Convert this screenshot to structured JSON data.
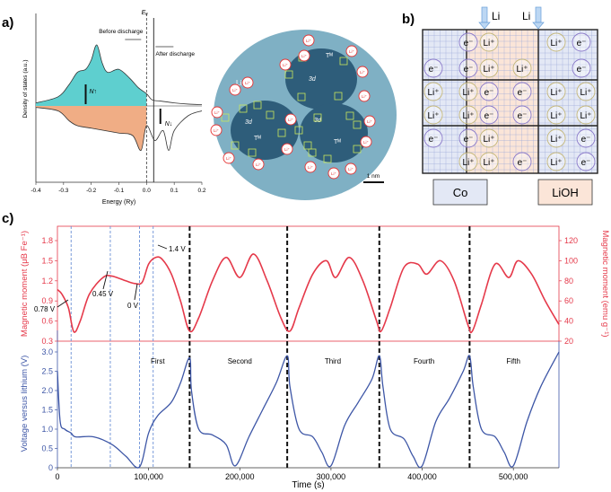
{
  "panel_labels": {
    "a": "a)",
    "b": "b)",
    "c": "c)"
  },
  "colors": {
    "teal": "#5ecfcf",
    "orange": "#f0ad85",
    "dark_teal": "#2e5d7a",
    "ellipse": "#7fb0c4",
    "red_axis": "#e5394a",
    "blue_axis": "#3d56a6",
    "dashed_blue": "#6a8fd6",
    "grid_blue": "#9aa8d8",
    "co_fill": "#e3e8f5",
    "lioh_fill": "#fbe5d8"
  },
  "panel_a": {
    "chart_data": {
      "type": "area",
      "ylabel": "Density of states (a.u.)",
      "xlabel": "Energy (Ry)",
      "xlim": [
        -0.4,
        0.2
      ],
      "xticks": [
        "-0.4",
        "-0.3",
        "-0.2",
        "-0.1",
        "0.0",
        "0.1",
        "0.2"
      ],
      "series": [
        {
          "name": "N↑",
          "x": [
            -0.4,
            -0.32,
            -0.28,
            -0.25,
            -0.22,
            -0.2,
            -0.18,
            -0.16,
            -0.14,
            -0.1,
            -0.06,
            -0.03,
            0.0,
            0.02,
            0.05,
            0.1,
            0.15,
            0.2
          ],
          "y": [
            0.05,
            0.15,
            0.35,
            0.55,
            0.6,
            0.75,
            1.0,
            0.7,
            0.55,
            0.6,
            0.45,
            0.3,
            0.2,
            0.1,
            0.08,
            0.05,
            0.03,
            0.02
          ]
        },
        {
          "name": "N↓",
          "x": [
            -0.4,
            -0.32,
            -0.28,
            -0.25,
            -0.2,
            -0.15,
            -0.1,
            -0.05,
            -0.02,
            0.0,
            0.03,
            0.06,
            0.08,
            0.1,
            0.15,
            0.2
          ],
          "y": [
            -0.03,
            -0.1,
            -0.3,
            -0.4,
            -0.45,
            -0.5,
            -0.55,
            -0.6,
            -0.9,
            -0.4,
            -0.7,
            -0.5,
            -0.9,
            -0.5,
            -0.2,
            -0.1
          ]
        }
      ],
      "ef_label": "Eₑ",
      "before_label": "Before discharge",
      "after_label": "After discharge",
      "n_up": "N↑",
      "n_down": "N↓"
    }
  },
  "panel_a2": {
    "li2o": "Li₂O",
    "t_label": "Tᴹ",
    "d_label": "3d",
    "fe_label": "Fe",
    "li_label": "Li⁺",
    "scale": "1 nm"
  },
  "panel_b": {
    "li_top_1": "Li",
    "li_top_2": "Li",
    "co_label": "Co",
    "lioh_label": "LiOH",
    "e_label": "e⁻",
    "li_label": "Li⁺"
  },
  "panel_c": {
    "chart_data": {
      "type": "line",
      "xlabel": "Time (s)",
      "xlim": [
        0,
        550000
      ],
      "xticks": [
        "0",
        "100,000",
        "200,000",
        "300,000",
        "400,000",
        "500,000"
      ],
      "top": {
        "ylabel_left": "Magnetic moment (μB Fe⁻¹)",
        "ylabel_right": "Magnetic moment (emu g⁻¹)",
        "ylim_left": [
          0.3,
          1.8
        ],
        "ylim_right": [
          20,
          120
        ],
        "yticks_left": [
          "0.3",
          "0.6",
          "0.9",
          "1.2",
          "1.5",
          "1.8"
        ],
        "yticks_right": [
          "20",
          "40",
          "60",
          "80",
          "100",
          "120"
        ],
        "annotations": [
          "0.78 V",
          "0.45 V",
          "0 V",
          "1.4 V"
        ],
        "x": [
          0,
          5000,
          12000,
          18000,
          25000,
          35000,
          50000,
          60000,
          75000,
          85000,
          93000,
          100000,
          108000,
          115000,
          125000,
          135000,
          145000,
          155000,
          170000,
          185000,
          200000,
          215000,
          230000,
          245000,
          255000,
          265000,
          280000,
          295000,
          305000,
          320000,
          335000,
          350000,
          355000,
          365000,
          380000,
          395000,
          405000,
          420000,
          435000,
          450000,
          455000,
          465000,
          480000,
          495000,
          505000,
          520000,
          535000,
          550000
        ],
        "y": [
          1.07,
          1.0,
          0.8,
          0.44,
          0.6,
          1.0,
          1.25,
          1.27,
          1.2,
          1.16,
          1.18,
          1.45,
          1.55,
          1.52,
          1.3,
          0.9,
          0.45,
          0.65,
          1.2,
          1.55,
          1.25,
          1.6,
          1.2,
          0.65,
          0.45,
          0.8,
          1.3,
          1.5,
          1.25,
          1.55,
          1.2,
          0.6,
          0.45,
          0.8,
          1.4,
          1.45,
          1.3,
          1.5,
          1.2,
          0.55,
          0.45,
          0.85,
          1.45,
          1.25,
          1.5,
          1.3,
          0.9,
          0.55
        ]
      },
      "bottom": {
        "ylabel": "Voltage versus lithium (V)",
        "ylim": [
          0,
          3.0
        ],
        "yticks": [
          "0",
          "0.5",
          "1.0",
          "1.5",
          "2.0",
          "2.5",
          "3.0"
        ],
        "cycle_labels": [
          "First",
          "Second",
          "Third",
          "Fourth",
          "Fifth"
        ],
        "x": [
          0,
          3000,
          8000,
          15000,
          20000,
          40000,
          60000,
          75000,
          90000,
          100000,
          110000,
          125000,
          135000,
          145000,
          147000,
          155000,
          170000,
          185000,
          195000,
          210000,
          225000,
          240000,
          252000,
          255000,
          265000,
          280000,
          290000,
          300000,
          315000,
          330000,
          345000,
          353000,
          357000,
          365000,
          380000,
          390000,
          400000,
          415000,
          430000,
          445000,
          452000,
          456000,
          465000,
          480000,
          490000,
          500000,
          515000,
          530000,
          550000
        ],
        "y": [
          2.5,
          1.2,
          1.0,
          0.9,
          0.8,
          0.8,
          0.6,
          0.3,
          0.02,
          0.9,
          1.35,
          1.7,
          2.2,
          2.85,
          2.0,
          1.0,
          0.85,
          0.6,
          0.05,
          0.8,
          1.5,
          2.2,
          2.9,
          2.1,
          1.0,
          0.8,
          0.4,
          0.05,
          1.1,
          1.7,
          2.3,
          2.9,
          2.1,
          1.0,
          0.75,
          0.3,
          0.05,
          1.2,
          1.8,
          2.5,
          2.9,
          2.1,
          1.0,
          0.8,
          0.4,
          0.05,
          1.2,
          2.1,
          3.0
        ]
      },
      "blue_dashed_x": [
        15000,
        58000,
        90000,
        105000
      ],
      "black_dashed_x": [
        145000,
        252000,
        353000,
        452000
      ]
    }
  }
}
